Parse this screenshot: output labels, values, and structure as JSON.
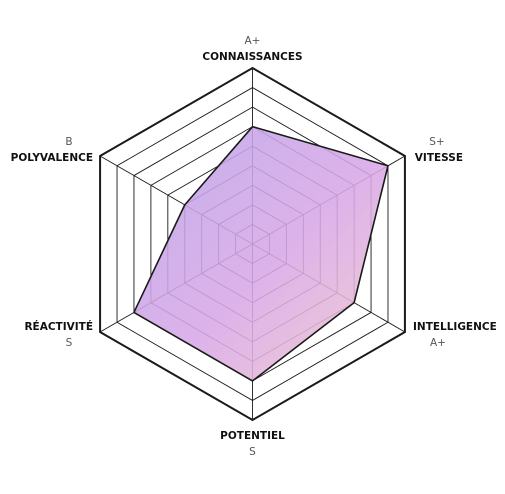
{
  "chart_data": {
    "type": "radar",
    "scale": [
      "",
      "E",
      "D",
      "C",
      "B",
      "A",
      "A+",
      "S",
      "S+"
    ],
    "axes": [
      {
        "name": "CONNAISSANCES",
        "grade": "A+",
        "value": 6
      },
      {
        "name": "VITESSE",
        "grade": "S+",
        "value": 8
      },
      {
        "name": "INTELLIGENCE",
        "grade": "A+",
        "value": 6
      },
      {
        "name": "POTENTIEL",
        "grade": "S",
        "value": 7
      },
      {
        "name": "RÉACTIVITÉ",
        "grade": "S",
        "value": 7
      },
      {
        "name": "POLYVALENCE",
        "grade": "B",
        "value": 4
      }
    ],
    "rmax": 9,
    "rings": [
      1,
      2,
      3,
      4,
      5,
      6,
      7,
      8,
      9
    ],
    "colors": {
      "fill_start": "#b9a3e6",
      "fill_mid": "#d9a8e8",
      "fill_end": "#f0c8c8",
      "outline": "#1a1a1a",
      "grid": "#1a1a1a"
    }
  }
}
